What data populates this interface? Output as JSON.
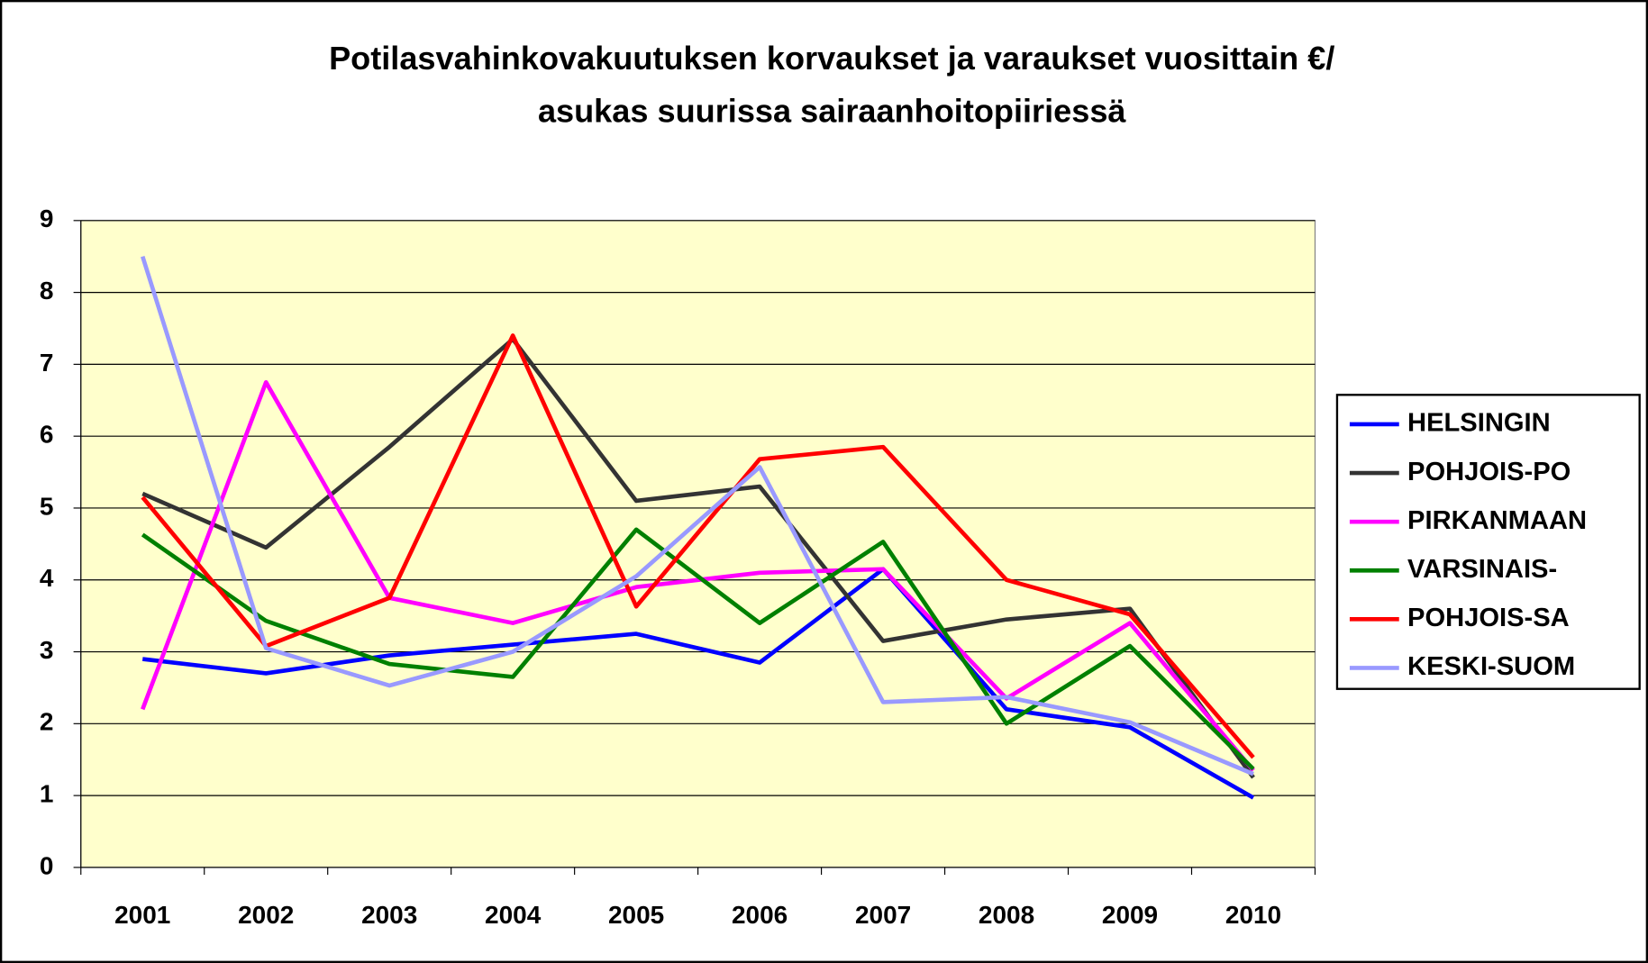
{
  "chart_data": {
    "type": "line",
    "title": "Potilasvahinkovakuutuksen korvaukset ja varaukset vuosittain  €/",
    "subtitle": "asukas suurissa sairaanhoitopiiriessä",
    "categories": [
      "2001",
      "2002",
      "2003",
      "2004",
      "2005",
      "2006",
      "2007",
      "2008",
      "2009",
      "2010"
    ],
    "series": [
      {
        "name": "HELSINGIN",
        "color": "#0000ff",
        "values": [
          2.9,
          2.7,
          2.95,
          3.1,
          3.25,
          2.85,
          4.15,
          2.2,
          1.95,
          0.97
        ]
      },
      {
        "name": "POHJOIS-PO",
        "color": "#333333",
        "values": [
          5.2,
          4.45,
          5.85,
          7.35,
          5.1,
          5.3,
          3.15,
          3.45,
          3.6,
          1.25
        ]
      },
      {
        "name": "PIRKANMAAN",
        "color": "#ff00ff",
        "values": [
          2.2,
          6.75,
          3.75,
          3.4,
          3.9,
          4.1,
          4.15,
          2.35,
          3.4,
          1.35
        ]
      },
      {
        "name": "VARSINAIS-",
        "color": "#008000",
        "values": [
          4.63,
          3.43,
          2.83,
          2.65,
          4.7,
          3.4,
          4.53,
          2.0,
          3.08,
          1.37
        ]
      },
      {
        "name": "POHJOIS-SA",
        "color": "#ff0000",
        "values": [
          5.15,
          3.08,
          3.75,
          7.4,
          3.63,
          5.68,
          5.85,
          4.0,
          3.52,
          1.53
        ]
      },
      {
        "name": "KESKI-SUOM",
        "color": "#9999ff",
        "values": [
          8.5,
          3.05,
          2.53,
          3.0,
          4.05,
          5.57,
          2.3,
          2.37,
          2.02,
          1.3
        ]
      }
    ],
    "ylim": [
      0,
      9
    ],
    "yticks": [
      0,
      1,
      2,
      3,
      4,
      5,
      6,
      7,
      8,
      9
    ],
    "grid": true,
    "legend": "right",
    "plot_background": "#ffffcc"
  }
}
